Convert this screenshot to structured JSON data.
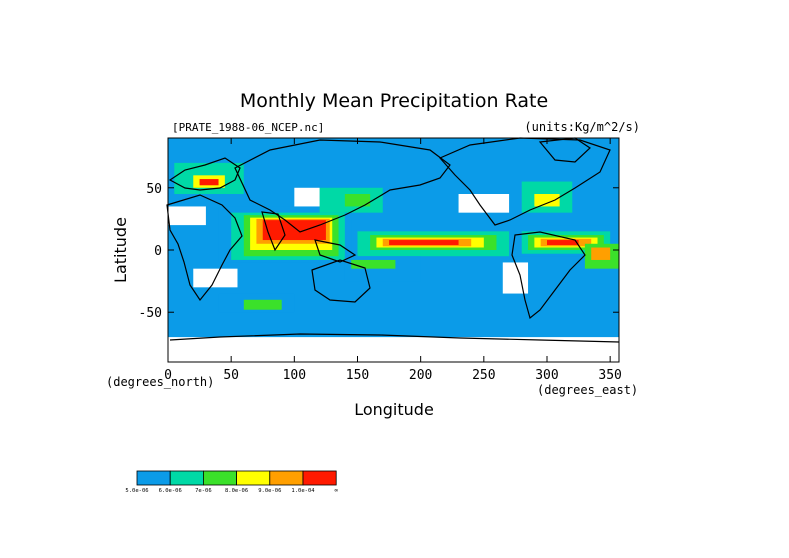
{
  "chart_data": {
    "type": "heatmap",
    "title": "Monthly Mean Precipitation Rate",
    "subtitle_left": "[PRATE_1988-06_NCEP.nc]",
    "subtitle_right": "(units:Kg/m^2/s)",
    "xlabel": "Longitude",
    "ylabel": "Latitude",
    "x_unit_label": "(degrees_east)",
    "y_unit_label": "(degrees_north)",
    "xlim": [
      0,
      357
    ],
    "ylim": [
      -90,
      90
    ],
    "x_ticks": [
      0,
      50,
      100,
      150,
      200,
      250,
      300,
      350
    ],
    "y_ticks": [
      -50,
      0,
      50
    ],
    "colorbar": {
      "colors": [
        "#0b9be8",
        "#00d9a6",
        "#3be12a",
        "#ffff00",
        "#ff9f00",
        "#ff1a00"
      ],
      "labels": [
        "5.0e-06",
        "6.0e-06",
        "7e-06",
        "8.0e-06",
        "9.0e-06",
        "1.0e-04",
        "∞"
      ]
    },
    "regions": [
      {
        "level": 1,
        "x": [
          270,
          357
        ],
        "y": [
          -5,
          20
        ]
      },
      {
        "level": 2,
        "x": [
          280,
          350
        ],
        "y": [
          -3,
          15
        ]
      },
      {
        "level": 3,
        "x": [
          285,
          345
        ],
        "y": [
          0,
          12
        ]
      },
      {
        "level": 4,
        "x": [
          290,
          340
        ],
        "y": [
          2,
          10
        ]
      },
      {
        "level": 5,
        "x": [
          295,
          335
        ],
        "y": [
          3,
          9
        ]
      },
      {
        "level": 6,
        "x": [
          300,
          325
        ],
        "y": [
          4,
          8
        ]
      },
      {
        "level": 1,
        "x": [
          40,
          145
        ],
        "y": [
          -10,
          35
        ]
      },
      {
        "level": 2,
        "x": [
          50,
          140
        ],
        "y": [
          -8,
          30
        ]
      },
      {
        "level": 3,
        "x": [
          60,
          135
        ],
        "y": [
          -5,
          28
        ]
      },
      {
        "level": 4,
        "x": [
          65,
          130
        ],
        "y": [
          0,
          26
        ]
      },
      {
        "level": 5,
        "x": [
          70,
          128
        ],
        "y": [
          5,
          25
        ]
      },
      {
        "level": 6,
        "x": [
          75,
          125
        ],
        "y": [
          8,
          24
        ]
      },
      {
        "level": 2,
        "x": [
          150,
          270
        ],
        "y": [
          -5,
          15
        ]
      },
      {
        "level": 3,
        "x": [
          160,
          260
        ],
        "y": [
          0,
          12
        ]
      },
      {
        "level": 4,
        "x": [
          165,
          250
        ],
        "y": [
          2,
          10
        ]
      },
      {
        "level": 5,
        "x": [
          170,
          240
        ],
        "y": [
          3,
          9
        ]
      },
      {
        "level": 6,
        "x": [
          175,
          230
        ],
        "y": [
          4,
          8
        ]
      },
      {
        "level": 1,
        "x": [
          140,
          200
        ],
        "y": [
          -25,
          -5
        ]
      },
      {
        "level": 3,
        "x": [
          145,
          180
        ],
        "y": [
          -15,
          -8
        ]
      },
      {
        "level": 2,
        "x": [
          5,
          60
        ],
        "y": [
          45,
          70
        ]
      },
      {
        "level": 4,
        "x": [
          20,
          45
        ],
        "y": [
          50,
          60
        ]
      },
      {
        "level": 6,
        "x": [
          25,
          40
        ],
        "y": [
          52,
          57
        ]
      },
      {
        "level": 2,
        "x": [
          120,
          170
        ],
        "y": [
          30,
          50
        ]
      },
      {
        "level": 3,
        "x": [
          140,
          160
        ],
        "y": [
          35,
          45
        ]
      },
      {
        "level": 2,
        "x": [
          280,
          320
        ],
        "y": [
          30,
          55
        ]
      },
      {
        "level": 4,
        "x": [
          290,
          310
        ],
        "y": [
          35,
          45
        ]
      },
      {
        "level": 1,
        "x": [
          40,
          100
        ],
        "y": [
          -50,
          -35
        ]
      },
      {
        "level": 3,
        "x": [
          60,
          90
        ],
        "y": [
          -48,
          -40
        ]
      },
      {
        "level": 3,
        "x": [
          330,
          357
        ],
        "y": [
          -15,
          5
        ]
      },
      {
        "level": 5,
        "x": [
          335,
          350
        ],
        "y": [
          -8,
          2
        ]
      }
    ],
    "missing_areas": [
      {
        "x": [
          0,
          30
        ],
        "y": [
          20,
          35
        ]
      },
      {
        "x": [
          20,
          55
        ],
        "y": [
          -30,
          -15
        ]
      },
      {
        "x": [
          100,
          120
        ],
        "y": [
          35,
          50
        ]
      },
      {
        "x": [
          230,
          270
        ],
        "y": [
          30,
          45
        ]
      },
      {
        "x": [
          265,
          285
        ],
        "y": [
          -35,
          -10
        ]
      },
      {
        "x": [
          0,
          357
        ],
        "y": [
          -90,
          -70
        ]
      }
    ]
  }
}
